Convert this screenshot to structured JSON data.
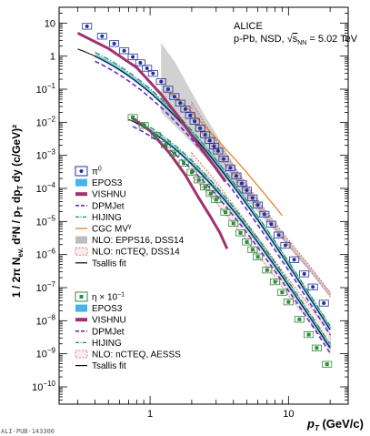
{
  "chart_data": {
    "type": "scatter",
    "x_scale": "log",
    "y_scale": "log",
    "xlim": [
      0.22,
      27
    ],
    "ylim": [
      3e-11,
      30
    ],
    "xlabel_main": "p",
    "xlabel_sub": "T",
    "xlabel_unit": " (GeV/c)",
    "ylabel": "1/(2π N_ev.) d²N/(p_T dp_T dy)  (c/GeV)²",
    "x_tick_labels": [
      {
        "value": 1,
        "label": "1"
      },
      {
        "value": 10,
        "label": "10"
      }
    ],
    "y_tick_labels": [
      {
        "value": 10,
        "base": "10",
        "exp": ""
      },
      {
        "value": 1,
        "base": "1",
        "exp": ""
      },
      {
        "value": 0.1,
        "base": "10",
        "exp": "−1"
      },
      {
        "value": 0.01,
        "base": "10",
        "exp": "−2"
      },
      {
        "value": 0.001,
        "base": "10",
        "exp": "−3"
      },
      {
        "value": 0.0001,
        "base": "10",
        "exp": "−4"
      },
      {
        "value": 1e-05,
        "base": "10",
        "exp": "−5"
      },
      {
        "value": 1e-06,
        "base": "10",
        "exp": "−6"
      },
      {
        "value": 1e-07,
        "base": "10",
        "exp": "−7"
      },
      {
        "value": 1e-08,
        "base": "10",
        "exp": "−8"
      },
      {
        "value": 1e-09,
        "base": "10",
        "exp": "−9"
      },
      {
        "value": 1e-10,
        "base": "10",
        "exp": "−10"
      }
    ],
    "header": {
      "line1": "ALICE",
      "line2_pre": "p-Pb, NSD, ",
      "line2_sqrt": "√",
      "line2_s": "s",
      "line2_sub": "NN",
      "line2_post": " = 5.02 TeV"
    },
    "watermark": "ALI-PUB-143300",
    "colors": {
      "pi0": "#1f2fa0",
      "eta": "#2e8b3a",
      "epos": "#1aa0e6",
      "vishnu": "#a0306e",
      "dpmjet": "#6a28c8",
      "hijing": "#1e8f4a",
      "cgc": "#e08a2a",
      "nlo_epps": "#bdbdbd",
      "nlo_ncteq": "#c86464",
      "tsallis": "#000000"
    },
    "legend_pi0": [
      {
        "key": "pi0",
        "label": "π",
        "sup": "0"
      },
      {
        "key": "epos",
        "label": "EPOS3",
        "sup": ""
      },
      {
        "key": "vishnu",
        "label": "VISHNU",
        "sup": ""
      },
      {
        "key": "dpmjet",
        "label": "DPMJet",
        "sup": ""
      },
      {
        "key": "hijing",
        "label": "HIJING",
        "sup": ""
      },
      {
        "key": "cgc",
        "label": "CGC MV",
        "sup": "γ"
      },
      {
        "key": "nlo_epps",
        "label": "NLO: EPPS16, DSS14",
        "sup": ""
      },
      {
        "key": "nlo_ncteq",
        "label": "NLO: nCTEQ, DSS14",
        "sup": ""
      },
      {
        "key": "tsallis",
        "label": "Tsallis fit",
        "sup": ""
      }
    ],
    "legend_eta": [
      {
        "key": "eta",
        "label": "η × 10",
        "sup": "−1"
      },
      {
        "key": "epos",
        "label": "EPOS3",
        "sup": ""
      },
      {
        "key": "vishnu",
        "label": "VISHNU",
        "sup": ""
      },
      {
        "key": "dpmjet",
        "label": "DPMJet",
        "sup": ""
      },
      {
        "key": "hijing",
        "label": "HIJING",
        "sup": ""
      },
      {
        "key": "nlo_ncteq",
        "label": "NLO: nCTEQ, AESSS",
        "sup": ""
      },
      {
        "key": "tsallis",
        "label": "Tsallis fit",
        "sup": ""
      }
    ],
    "pi0_x": [
      0.35,
      0.45,
      0.55,
      0.65,
      0.75,
      0.85,
      0.95,
      1.05,
      1.2,
      1.35,
      1.5,
      1.65,
      1.8,
      1.95,
      2.1,
      2.3,
      2.5,
      2.7,
      2.9,
      3.1,
      3.4,
      3.8,
      4.2,
      4.6,
      5.0,
      5.5,
      6.0,
      6.7,
      7.5,
      8.5,
      9.5,
      11,
      13,
      15,
      18
    ],
    "pi0_y": [
      8,
      4,
      2.4,
      1.45,
      0.95,
      0.63,
      0.43,
      0.3,
      0.17,
      0.1,
      0.06,
      0.038,
      0.025,
      0.016,
      0.0107,
      0.0066,
      0.0042,
      0.0028,
      0.0019,
      0.00135,
      0.00078,
      0.00042,
      0.00024,
      0.000142,
      8.85e-05,
      5.2e-05,
      3.16e-05,
      1.66e-05,
      8.3e-06,
      3.9e-06,
      1.9e-06,
      7e-07,
      2.6e-07,
      1.05e-07,
      3.4e-08
    ],
    "eta_x": [
      0.75,
      0.9,
      1.1,
      1.3,
      1.5,
      1.75,
      2.0,
      2.25,
      2.5,
      2.75,
      3.0,
      3.5,
      4.0,
      4.5,
      5.0,
      5.5,
      6.0,
      7.0,
      8.0,
      9.0,
      10.0,
      12.0,
      14.0,
      16.0,
      19.0
    ],
    "eta_y": [
      0.014,
      0.008,
      0.004,
      0.0021,
      0.00115,
      0.00058,
      0.00031,
      0.00018,
      0.00011,
      7e-05,
      4.6e-05,
      1.9e-05,
      8.8e-06,
      4.5e-06,
      2.4e-06,
      1.4e-06,
      8.5e-07,
      3.4e-07,
      1.5e-07,
      7.2e-08,
      3.7e-08,
      1.1e-08,
      3.8e-09,
      1.5e-09,
      4.8e-10
    ],
    "pi0_tsallis": {
      "A": 5.4,
      "C": 0.15,
      "n": 6.9,
      "m": 0.135
    },
    "eta_tsallis": {
      "A": 0.042,
      "C": 0.25,
      "n": 6.8,
      "m": 0.548
    },
    "pi0_vishnu": {
      "x": [
        0.3,
        0.5,
        0.8,
        1.2,
        1.6,
        2.0,
        2.5,
        3.0,
        3.5
      ],
      "y": [
        5,
        1.7,
        0.45,
        0.07,
        0.015,
        0.004,
        0.0011,
        0.0004,
        0.00016
      ]
    },
    "eta_vishnu": {
      "x": [
        0.75,
        1.0,
        1.4,
        1.8,
        2.2,
        2.7,
        3.2,
        3.6
      ],
      "y": [
        0.013,
        0.0055,
        0.0011,
        0.00025,
        6e-05,
        1.5e-05,
        4.5e-06,
        1.5e-06
      ]
    },
    "pi0_epos_x": [
      0.4,
      20
    ],
    "eta_epos_x": [
      0.8,
      20
    ],
    "dpmjet_scale": 0.7,
    "hijing_scale": 1.3,
    "cgc": {
      "x": [
        1.3,
        1.6,
        2.0,
        2.5,
        3.0,
        3.6,
        4.3,
        5.0,
        6.0,
        7.0,
        8.0,
        9.0
      ],
      "y": [
        0.09,
        0.05,
        0.02,
        0.0075,
        0.0033,
        0.0014,
        0.00062,
        0.0003,
        0.00012,
        5.5e-05,
        2.8e-05,
        1.5e-05
      ]
    },
    "nlo_epps": {
      "x": [
        1.2,
        1.5,
        2.0,
        2.5,
        3.0,
        4.0,
        5.0,
        7.0,
        10.0,
        14.0,
        20.0
      ],
      "lo": [
        0.02,
        0.008,
        0.0024,
        0.00085,
        0.00038,
        0.00011,
        4.5e-05,
        9.5e-06,
        1.7e-06,
        3.4e-07,
        5.2e-08
      ],
      "hi": [
        2.5,
        0.7,
        0.08,
        0.015,
        0.0045,
        0.00055,
        0.00013,
        1.8e-05,
        2.6e-06,
        4.8e-07,
        7.5e-08
      ]
    },
    "pi0_nlo_ncteq": {
      "x": [
        2.0,
        2.5,
        3.0,
        4.0,
        5.0,
        7.0,
        10.0,
        14.0,
        20.0
      ],
      "lo": [
        0.013,
        0.0034,
        0.0012,
        0.00024,
        7.2e-05,
        1.2e-05,
        1.9e-06,
        3.6e-07,
        5.4e-08
      ],
      "hi": [
        0.04,
        0.009,
        0.0029,
        0.00048,
        0.00013,
        1.9e-05,
        2.8e-06,
        5e-07,
        7.2e-08
      ]
    },
    "eta_nlo_ncteq": {
      "x": [
        2.0,
        2.5,
        3.0,
        4.0,
        5.0,
        7.0,
        10.0,
        14.0,
        20.0
      ],
      "lo": [
        0.00024,
        8.5e-05,
        3.8e-05,
        8.5e-06,
        2.6e-06,
        4.2e-07,
        5.8e-08,
        1.05e-08,
        1.4e-09
      ],
      "hi": [
        0.0012,
        0.0004,
        0.00016,
        3.2e-05,
        9.2e-06,
        1.4e-06,
        1.8e-07,
        3.1e-08,
        4.2e-09
      ]
    }
  }
}
